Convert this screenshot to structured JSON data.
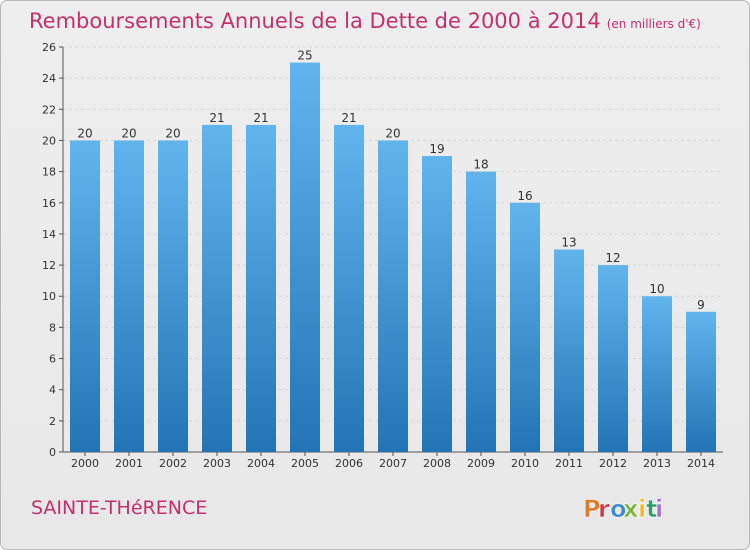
{
  "title": {
    "main": "Remboursements Annuels de la Dette de 2000 à 2014",
    "unit": "(en milliers d'€)"
  },
  "footer": {
    "commune": "SAINTE-THéRENCE",
    "logo_text": "Proxiti"
  },
  "colors": {
    "title": "#c4306f",
    "bar_top": "#61b5ec",
    "bar_bottom": "#2374b5",
    "axis": "#555555",
    "grid": "#d5d5d5",
    "logo": [
      "#e07a2d",
      "#d23b45",
      "#3c8bd6",
      "#7db13a",
      "#f3b923",
      "#2f9c6a",
      "#a66ad6"
    ]
  },
  "chart_data": {
    "type": "bar",
    "categories": [
      "2000",
      "2001",
      "2002",
      "2003",
      "2004",
      "2005",
      "2006",
      "2007",
      "2008",
      "2009",
      "2010",
      "2011",
      "2012",
      "2013",
      "2014"
    ],
    "values": [
      20,
      20,
      20,
      21,
      21,
      25,
      21,
      20,
      19,
      18,
      16,
      13,
      12,
      10,
      9
    ],
    "data_labels": [
      "20",
      "20",
      "20",
      "21",
      "21",
      "25",
      "21",
      "20",
      "19",
      "18",
      "16",
      "13",
      "12",
      "10",
      "9"
    ],
    "title": "Remboursements Annuels de la Dette de 2000 à 2014",
    "subtitle": "(en milliers d'€)",
    "xlabel": "",
    "ylabel": "",
    "ylim": [
      0,
      26
    ],
    "yticks": [
      0,
      2,
      4,
      6,
      8,
      10,
      12,
      14,
      16,
      18,
      20,
      22,
      24,
      26
    ],
    "grid": true
  }
}
